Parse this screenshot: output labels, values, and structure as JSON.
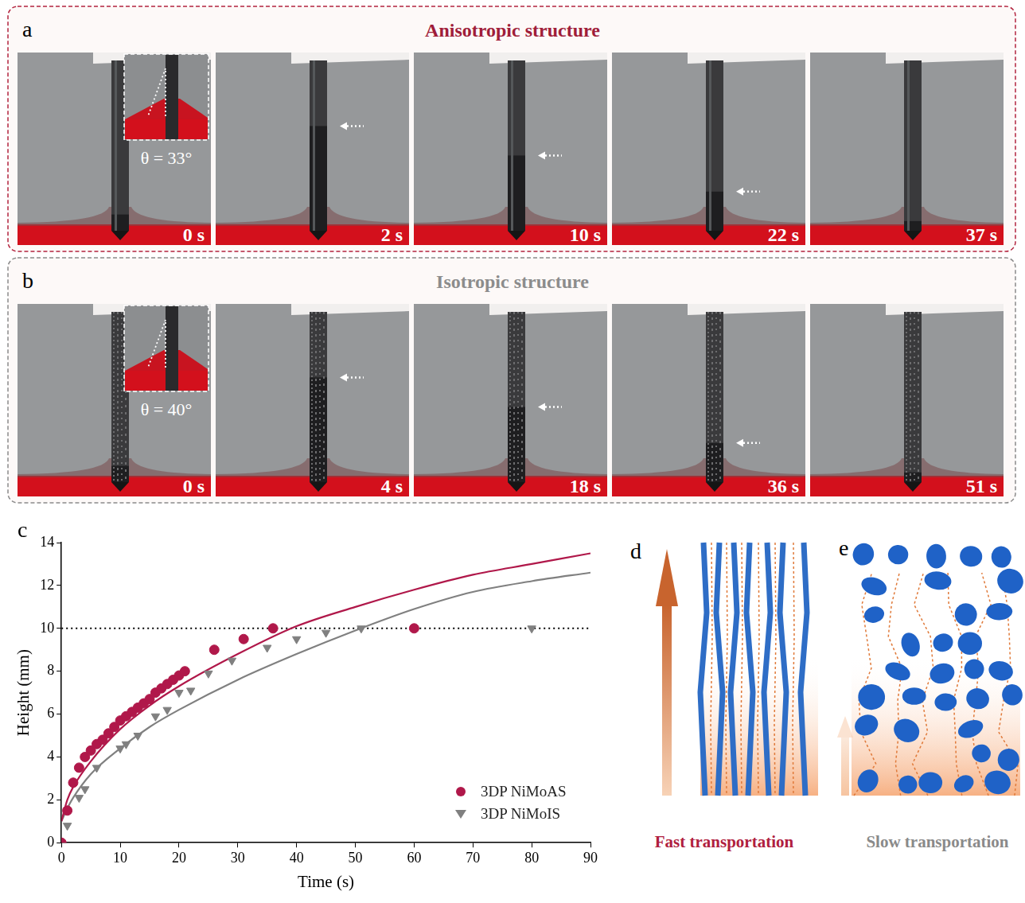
{
  "panel_a": {
    "letter": "a",
    "title": "Anisotropic structure",
    "inset_label": "θ = 33°",
    "frame_labels": [
      "0 s",
      "2 s",
      "10 s",
      "22 s",
      "37 s"
    ]
  },
  "panel_b": {
    "letter": "b",
    "title": "Isotropic structure",
    "inset_label": "θ = 40°",
    "frame_labels": [
      "0 s",
      "4 s",
      "18 s",
      "36 s",
      "51 s"
    ]
  },
  "chart_data": {
    "letter": "c",
    "type": "scatter",
    "x_label": "Time (s)",
    "y_label": "Height (mm)",
    "xlim": [
      0,
      90
    ],
    "xticks": [
      0,
      10,
      20,
      30,
      40,
      50,
      60,
      70,
      80,
      90
    ],
    "ylim": [
      0,
      14
    ],
    "yticks": [
      0,
      2,
      4,
      6,
      8,
      10,
      12,
      14
    ],
    "grid": false,
    "legend": "bottom right",
    "series": [
      {
        "name": "3DP NiMoAS",
        "color": "#b0184a",
        "marker": "circle",
        "x": [
          0,
          1,
          2,
          3,
          4,
          5,
          6,
          7,
          8,
          9,
          10,
          11,
          12,
          13,
          14,
          15,
          16,
          17,
          18,
          19,
          20,
          21,
          26,
          31,
          36,
          60
        ],
        "values": [
          0,
          1.5,
          2.8,
          3.5,
          4.0,
          4.3,
          4.6,
          4.8,
          5.1,
          5.4,
          5.7,
          5.9,
          6.1,
          6.3,
          6.5,
          6.7,
          7.0,
          7.2,
          7.4,
          7.6,
          7.8,
          8.0,
          9.0,
          9.5,
          10,
          10
        ]
      },
      {
        "name": "3DP NiMoIS",
        "color": "#808080",
        "marker": "triangle_down",
        "x": [
          1,
          3,
          4,
          6,
          10,
          11,
          13,
          16,
          18,
          20,
          22,
          25,
          29,
          35,
          40,
          45,
          51,
          80
        ],
        "values": [
          0.8,
          2.1,
          2.5,
          3.5,
          4.4,
          4.6,
          5.0,
          5.9,
          6.2,
          7.0,
          7.1,
          7.9,
          8.5,
          9.1,
          9.5,
          9.8,
          10,
          10
        ]
      },
      {
        "type": "line",
        "color": "#b0184a",
        "line_style": "solid",
        "x": [
          0,
          1,
          2,
          5,
          10,
          15,
          20,
          30,
          40,
          50,
          60,
          70,
          80,
          90
        ],
        "values": [
          1.0,
          2.0,
          2.6,
          3.8,
          5.3,
          6.4,
          7.3,
          8.8,
          10.1,
          11.0,
          11.8,
          12.5,
          13.0,
          13.5
        ]
      },
      {
        "type": "line",
        "color": "#808080",
        "line_style": "solid",
        "x": [
          0,
          1,
          2,
          5,
          10,
          15,
          20,
          30,
          40,
          50,
          60,
          70,
          80,
          90
        ],
        "values": [
          1.0,
          1.6,
          2.1,
          3.2,
          4.4,
          5.4,
          6.2,
          7.6,
          8.8,
          9.9,
          10.9,
          11.7,
          12.2,
          12.6
        ]
      },
      {
        "type": "line",
        "color": "#000000",
        "line_style": "dotted",
        "x": [
          0,
          90
        ],
        "values": [
          10,
          10
        ]
      }
    ]
  },
  "panel_d": {
    "letter": "d",
    "label": "Fast transportation"
  },
  "panel_e": {
    "letter": "e",
    "label": "Slow transportation"
  }
}
